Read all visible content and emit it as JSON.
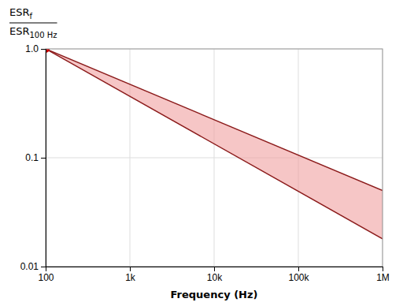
{
  "chart_data": {
    "type": "range_area",
    "xlabel": "Frequency (Hz)",
    "ylabel": [
      {
        "text": "ESR",
        "sub": "f"
      },
      {
        "text": "ESR",
        "sub": "100 Hz"
      }
    ],
    "x": [
      100,
      1000000
    ],
    "color": "#f0a0a0",
    "series": [
      {
        "color": "#8B1A1A",
        "values": [
          1.0,
          0.05
        ]
      },
      {
        "color": "#8B1A1A",
        "values": [
          1.0,
          0.018
        ]
      },
      {
        "type": "scatter",
        "marker": "circle",
        "color": "#CC0000",
        "x": [
          100
        ],
        "values": [
          1.0
        ]
      }
    ],
    "log": true,
    "xlim": [
      100,
      1000000
    ],
    "ylim": [
      0.01,
      1.0
    ],
    "xticks": [
      100,
      {
        "value": 1000,
        "label": "1k"
      },
      {
        "value": 10000,
        "label": "10k"
      },
      {
        "value": 100000,
        "label": "100k"
      },
      {
        "value": 1000000,
        "label": "1M"
      }
    ],
    "yticks": [
      0.01,
      0.1,
      {
        "value": 1.0,
        "label": "1.0"
      }
    ],
    "grid": true
  }
}
